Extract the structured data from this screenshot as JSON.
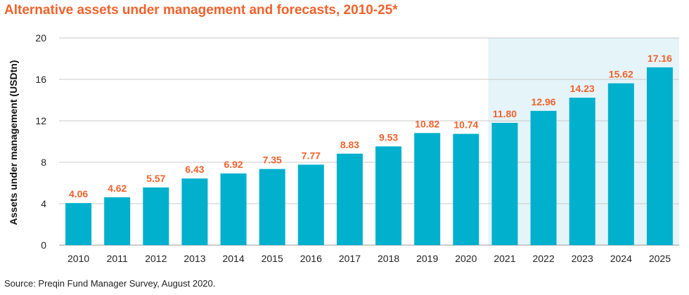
{
  "title": "Alternative assets under management and forecasts, 2010-25*",
  "source": "Source: Preqin Fund Manager Survey, August 2020.",
  "colors": {
    "bar": "#00b0cd",
    "forecast_band": "#e5f4f9",
    "accent": "#f0622d",
    "grid": "#c8c8c8"
  },
  "chart_data": {
    "type": "bar",
    "categories": [
      "2010",
      "2011",
      "2012",
      "2013",
      "2014",
      "2015",
      "2016",
      "2017",
      "2018",
      "2019",
      "2020",
      "2021",
      "2022",
      "2023",
      "2024",
      "2025"
    ],
    "values": [
      4.06,
      4.62,
      5.57,
      6.43,
      6.92,
      7.35,
      7.77,
      8.83,
      9.53,
      10.82,
      10.74,
      11.8,
      12.96,
      14.23,
      15.62,
      17.16
    ],
    "data_labels": [
      "4.06",
      "4.62",
      "5.57",
      "6.43",
      "6.92",
      "7.35",
      "7.77",
      "8.83",
      "9.53",
      "10.82",
      "10.74",
      "11.80",
      "12.96",
      "14.23",
      "15.62",
      "17.16"
    ],
    "ylabel": "Assets under management (USDtn)",
    "xlabel": "",
    "ylim": [
      0,
      20
    ],
    "yticks": [
      "0",
      "4",
      "8",
      "12",
      "16",
      "20"
    ],
    "grid": true,
    "forecast_range": [
      "2021",
      "2025"
    ]
  }
}
